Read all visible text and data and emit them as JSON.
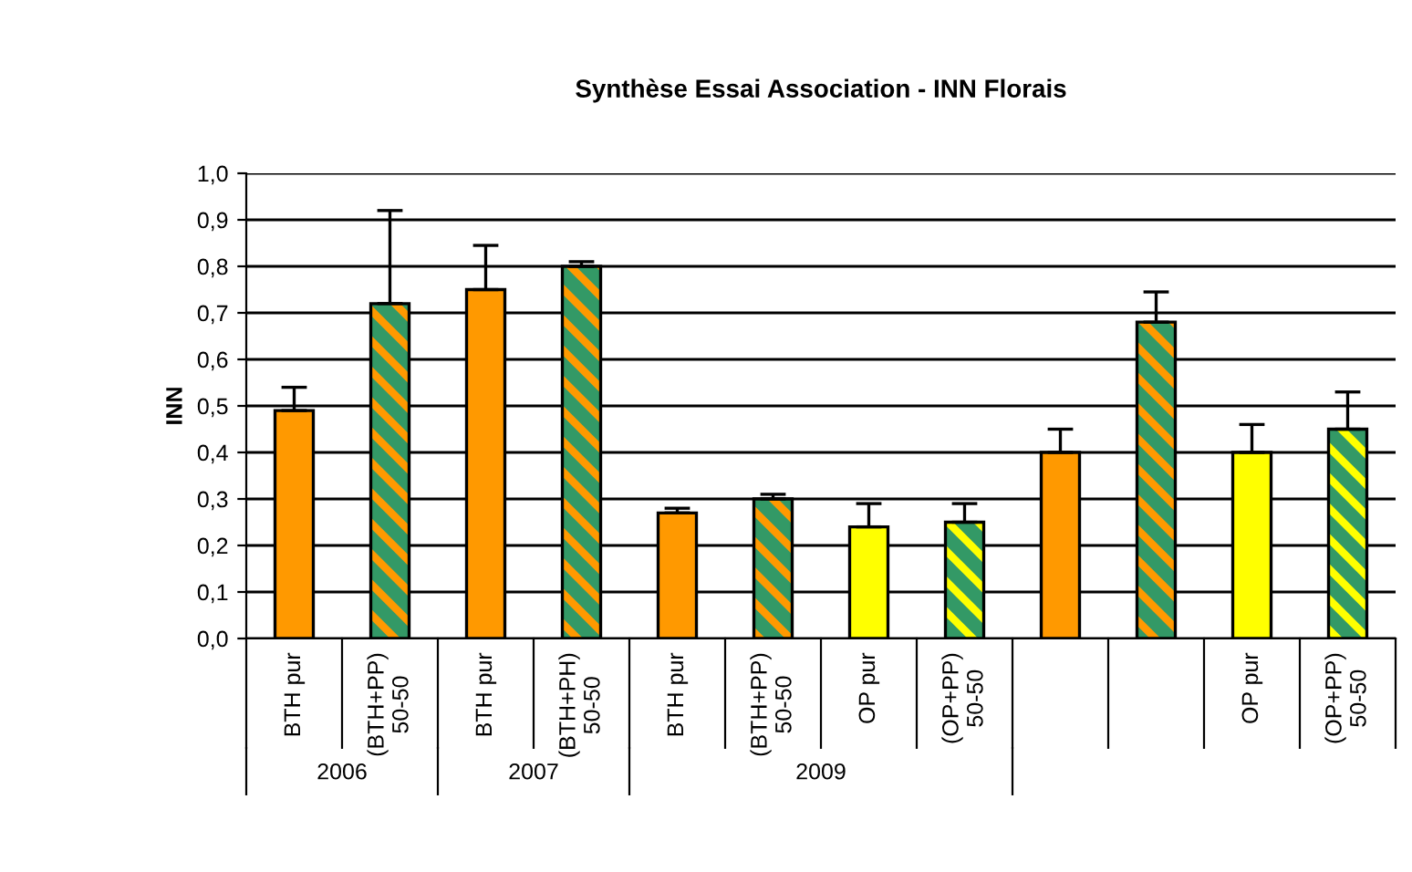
{
  "chart_data": {
    "type": "bar",
    "title": "Synthèse Essai Association - INN Florais",
    "ylabel": "INN",
    "categories": [
      "BTH pur",
      "(BTH+PP)\n50-50",
      "BTH pur",
      "(BTH+PH)\n50-50",
      "BTH pur",
      "(BTH+PP)\n50-50",
      "OP pur",
      "(OP+PP)\n50-50",
      null,
      null,
      "OP pur",
      "(OP+PP)\n50-50"
    ],
    "series": [
      {
        "colors": [
          "#ff9900",
          null,
          "#ff9900",
          null,
          "#ff9900",
          null,
          "#ffff00",
          null,
          "#ff9900",
          null,
          "#ffff00",
          null
        ],
        "values": [
          0.49,
          null,
          0.75,
          null,
          0.27,
          null,
          0.24,
          null,
          0.4,
          null,
          0.4,
          null
        ],
        "errors": [
          [
            0.49,
            0.54
          ],
          null,
          [
            0.75,
            0.845
          ],
          null,
          [
            0.27,
            0.28
          ],
          null,
          [
            0.24,
            0.29
          ],
          null,
          [
            0.4,
            0.45
          ],
          null,
          [
            0.4,
            0.46
          ],
          null
        ]
      },
      {
        "colors": [
          null,
          "#ff9900",
          null,
          "#ff9900",
          null,
          "#ff9900",
          null,
          "#ffff00",
          null,
          "#ff9900",
          null,
          "#ffff00"
        ],
        "values": [
          null,
          0.72,
          null,
          0.8,
          null,
          0.3,
          null,
          0.25,
          null,
          0.68,
          null,
          0.45
        ],
        "errors": [
          null,
          [
            0.72,
            0.92
          ],
          null,
          [
            0.8,
            0.81
          ],
          null,
          [
            0.3,
            0.31
          ],
          null,
          [
            0.25,
            0.29
          ],
          null,
          [
            0.68,
            0.745
          ],
          null,
          [
            0.45,
            0.53
          ]
        ]
      }
    ],
    "annotations": [
      "2006",
      "2007",
      "2009"
    ],
    "ylim": [
      0,
      1.0
    ],
    "yticks": [
      {
        "value": 0,
        "label": "0,0"
      },
      {
        "value": 0.1,
        "label": "0,1"
      },
      {
        "value": 0.2,
        "label": "0,2"
      },
      {
        "value": 0.3,
        "label": "0,3"
      },
      {
        "value": 0.4,
        "label": "0,4"
      },
      {
        "value": 0.5,
        "label": "0,5"
      },
      {
        "value": 0.6,
        "label": "0,6"
      },
      {
        "value": 0.7,
        "label": "0,7"
      },
      {
        "value": 0.8,
        "label": "0,8"
      },
      {
        "value": 0.9,
        "label": "0,9"
      },
      {
        "value": 1.0,
        "label": "1,0"
      }
    ],
    "grid": "y",
    "legend": false
  }
}
